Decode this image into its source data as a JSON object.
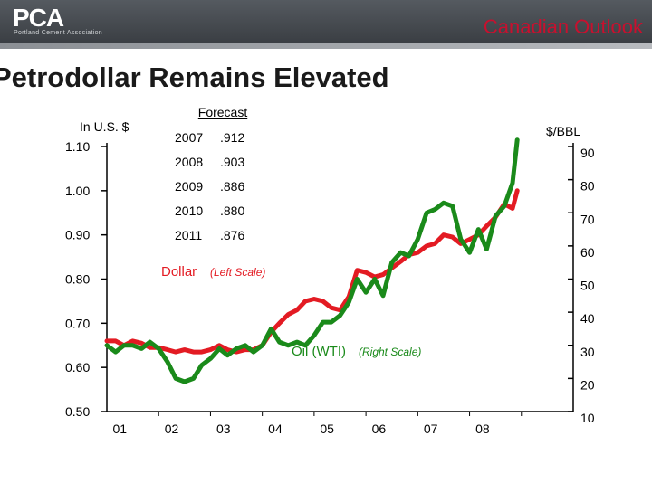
{
  "header": {
    "logo": "PCA",
    "logo_subtitle": "Portland Cement Association",
    "section": "Canadian Outlook"
  },
  "slide": {
    "title": "Petrodollar Remains Elevated"
  },
  "colors": {
    "dollar": "#e31b23",
    "oil": "#1a8a1a",
    "title_red": "#c8102e",
    "axis": "#000000"
  },
  "chart_data": {
    "type": "line",
    "title": "Petrodollar Remains Elevated",
    "left_axis": {
      "label": "In U.S. $",
      "range": [
        0.5,
        1.1
      ],
      "ticks": [
        "0.50",
        "0.60",
        "0.70",
        "0.80",
        "0.90",
        "1.00",
        "1.10"
      ]
    },
    "right_axis": {
      "label": "$/BBL",
      "range": [
        10,
        90
      ],
      "ticks": [
        "10",
        "20",
        "30",
        "40",
        "50",
        "60",
        "70",
        "80",
        "90"
      ]
    },
    "x_axis": {
      "range": [
        2000,
        2009
      ],
      "ticks": [
        "01",
        "02",
        "03",
        "04",
        "05",
        "06",
        "07",
        "08"
      ]
    },
    "forecast": {
      "title": "Forecast",
      "rows": [
        {
          "year": "2007",
          "value": ".912"
        },
        {
          "year": "2008",
          "value": ".903"
        },
        {
          "year": "2009",
          "value": ".886"
        },
        {
          "year": "2010",
          "value": ".880"
        },
        {
          "year": "2011",
          "value": ".876"
        }
      ]
    },
    "annotations": {
      "dollar_main": "Dollar",
      "dollar_sub": "(Left Scale)",
      "oil_main": "Oil (WTI)",
      "oil_sub": "(Right Scale)"
    },
    "series": [
      {
        "name": "Dollar",
        "axis": "left",
        "x": [
          2000.0,
          2000.17,
          2000.33,
          2000.5,
          2000.67,
          2000.83,
          2001.0,
          2001.17,
          2001.33,
          2001.5,
          2001.67,
          2001.83,
          2002.0,
          2002.17,
          2002.33,
          2002.5,
          2002.67,
          2002.83,
          2003.0,
          2003.17,
          2003.33,
          2003.5,
          2003.67,
          2003.83,
          2004.0,
          2004.17,
          2004.33,
          2004.5,
          2004.67,
          2004.83,
          2005.0,
          2005.17,
          2005.33,
          2005.5,
          2005.67,
          2005.83,
          2006.0,
          2006.17,
          2006.33,
          2006.5,
          2006.67,
          2006.83,
          2007.0,
          2007.17,
          2007.33,
          2007.5,
          2007.67,
          2007.83,
          2007.92
        ],
        "values": [
          0.66,
          0.66,
          0.65,
          0.66,
          0.655,
          0.645,
          0.645,
          0.64,
          0.635,
          0.64,
          0.635,
          0.635,
          0.64,
          0.65,
          0.64,
          0.635,
          0.64,
          0.64,
          0.65,
          0.68,
          0.7,
          0.72,
          0.73,
          0.75,
          0.755,
          0.75,
          0.735,
          0.73,
          0.76,
          0.82,
          0.815,
          0.805,
          0.81,
          0.825,
          0.84,
          0.855,
          0.86,
          0.875,
          0.88,
          0.9,
          0.895,
          0.88,
          0.89,
          0.9,
          0.92,
          0.94,
          0.97,
          0.96,
          1.0
        ]
      },
      {
        "name": "Oil (WTI)",
        "axis": "right",
        "x": [
          2000.0,
          2000.17,
          2000.33,
          2000.5,
          2000.67,
          2000.83,
          2001.0,
          2001.17,
          2001.33,
          2001.5,
          2001.67,
          2001.83,
          2002.0,
          2002.17,
          2002.33,
          2002.5,
          2002.67,
          2002.83,
          2003.0,
          2003.17,
          2003.33,
          2003.5,
          2003.67,
          2003.83,
          2004.0,
          2004.17,
          2004.33,
          2004.5,
          2004.67,
          2004.83,
          2005.0,
          2005.17,
          2005.33,
          2005.5,
          2005.67,
          2005.83,
          2006.0,
          2006.17,
          2006.33,
          2006.5,
          2006.67,
          2006.83,
          2007.0,
          2007.17,
          2007.33,
          2007.5,
          2007.67,
          2007.83,
          2007.92
        ],
        "values": [
          30,
          28,
          30,
          30,
          29,
          31,
          29,
          25,
          20,
          19,
          20,
          24,
          26,
          29,
          27,
          29,
          30,
          28,
          30,
          35,
          31,
          30,
          31,
          30,
          33,
          37,
          37,
          39,
          43,
          50,
          46,
          50,
          45,
          55,
          58,
          57,
          62,
          70,
          71,
          73,
          72,
          62,
          58,
          65,
          59,
          69,
          72,
          79,
          92
        ]
      }
    ]
  }
}
